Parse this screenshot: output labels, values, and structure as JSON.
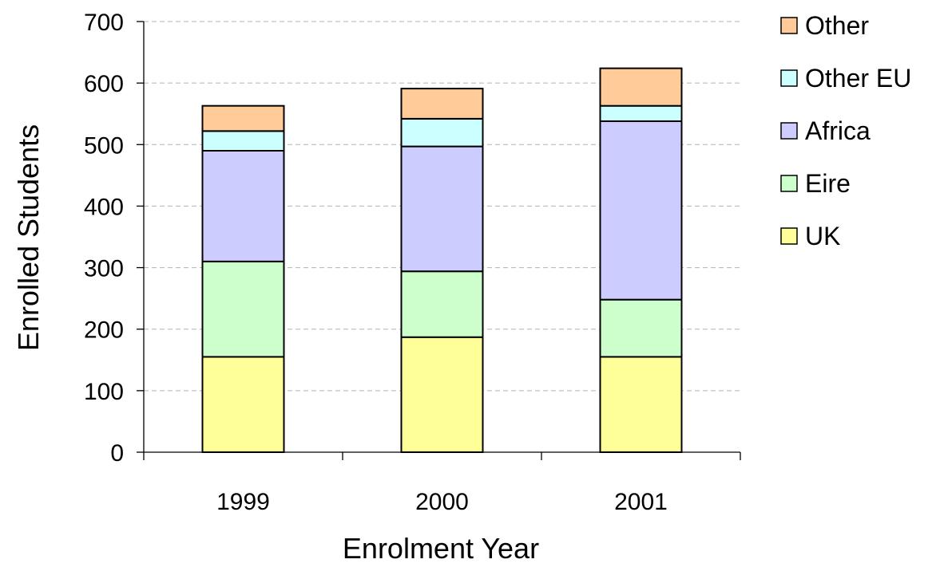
{
  "chart_data": {
    "type": "bar",
    "stacked": true,
    "title": "",
    "xlabel": "Enrolment Year",
    "ylabel": "Enrolled Students",
    "categories": [
      "1999",
      "2000",
      "2001"
    ],
    "ylim": [
      0,
      700
    ],
    "yticks": [
      0,
      100,
      200,
      300,
      400,
      500,
      600,
      700
    ],
    "grid": true,
    "legend_position": "right",
    "series": [
      {
        "name": "UK",
        "color": "#FFFF99",
        "values": [
          155,
          187,
          155
        ]
      },
      {
        "name": "Eire",
        "color": "#CCFFCC",
        "values": [
          155,
          107,
          93
        ]
      },
      {
        "name": "Africa",
        "color": "#CCCCFF",
        "values": [
          180,
          203,
          290
        ]
      },
      {
        "name": "Other EU",
        "color": "#CCFFFF",
        "values": [
          32,
          45,
          25
        ]
      },
      {
        "name": "Other",
        "color": "#FFCC99",
        "values": [
          41,
          49,
          61
        ]
      }
    ]
  }
}
